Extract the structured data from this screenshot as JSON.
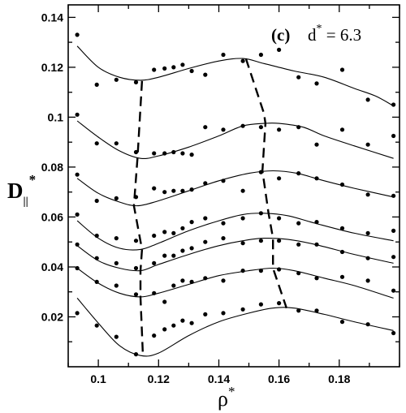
{
  "chart_data": {
    "type": "scatter",
    "title": "",
    "annotation": {
      "panel": "(c)",
      "label_base": "d",
      "label_sup": "*",
      "label_rest": " = 6.3"
    },
    "xlabel": {
      "base": "ρ",
      "sup": "*"
    },
    "ylabel": {
      "base": "D",
      "sub": "||",
      "sup": "*"
    },
    "xlim": [
      0.09,
      0.2
    ],
    "ylim": [
      0.0,
      0.145
    ],
    "xticks": [
      0.1,
      0.12,
      0.14,
      0.16,
      0.18
    ],
    "xtick_labels": [
      "0.1",
      "0.12",
      "0.14",
      "0.16",
      "0.18"
    ],
    "yticks": [
      0.02,
      0.04,
      0.06,
      0.08,
      0.1,
      0.12,
      0.14
    ],
    "ytick_labels": [
      "0.02",
      "0.04",
      "0.06",
      "0.08",
      "0.1",
      "0.12",
      "0.14"
    ],
    "xminor": 0.01,
    "yminor": 0.01,
    "grid": false,
    "legend": "none",
    "series": [
      {
        "points": [
          [
            0.093,
            0.133
          ],
          [
            0.0995,
            0.113
          ],
          [
            0.106,
            0.115
          ],
          [
            0.1125,
            0.114
          ],
          [
            0.1185,
            0.119
          ],
          [
            0.122,
            0.1195
          ],
          [
            0.125,
            0.12
          ],
          [
            0.128,
            0.121
          ],
          [
            0.131,
            0.1185
          ],
          [
            0.1355,
            0.117
          ],
          [
            0.1415,
            0.125
          ],
          [
            0.148,
            0.1225
          ],
          [
            0.154,
            0.125
          ],
          [
            0.16,
            0.127
          ],
          [
            0.1665,
            0.116
          ],
          [
            0.1725,
            0.1135
          ],
          [
            0.181,
            0.119
          ],
          [
            0.1895,
            0.107
          ],
          [
            0.198,
            0.105
          ]
        ],
        "curve": [
          [
            0.093,
            0.1285
          ],
          [
            0.1,
            0.12
          ],
          [
            0.107,
            0.116
          ],
          [
            0.114,
            0.1148
          ],
          [
            0.12,
            0.116
          ],
          [
            0.13,
            0.1195
          ],
          [
            0.14,
            0.1225
          ],
          [
            0.148,
            0.1235
          ],
          [
            0.155,
            0.1215
          ],
          [
            0.165,
            0.1185
          ],
          [
            0.175,
            0.116
          ],
          [
            0.185,
            0.1115
          ],
          [
            0.192,
            0.1085
          ],
          [
            0.198,
            0.1045
          ]
        ]
      },
      {
        "points": [
          [
            0.093,
            0.101
          ],
          [
            0.0995,
            0.0895
          ],
          [
            0.106,
            0.0895
          ],
          [
            0.1125,
            0.086
          ],
          [
            0.1185,
            0.0855
          ],
          [
            0.122,
            0.0855
          ],
          [
            0.125,
            0.086
          ],
          [
            0.128,
            0.0855
          ],
          [
            0.131,
            0.085
          ],
          [
            0.1355,
            0.096
          ],
          [
            0.1415,
            0.095
          ],
          [
            0.148,
            0.0965
          ],
          [
            0.154,
            0.096
          ],
          [
            0.16,
            0.095
          ],
          [
            0.1665,
            0.096
          ],
          [
            0.1725,
            0.089
          ],
          [
            0.181,
            0.095
          ],
          [
            0.1895,
            0.089
          ],
          [
            0.198,
            0.0925
          ]
        ],
        "curve": [
          [
            0.093,
            0.0985
          ],
          [
            0.1,
            0.092
          ],
          [
            0.107,
            0.0865
          ],
          [
            0.114,
            0.0835
          ],
          [
            0.12,
            0.0845
          ],
          [
            0.13,
            0.088
          ],
          [
            0.14,
            0.0925
          ],
          [
            0.148,
            0.0965
          ],
          [
            0.155,
            0.0975
          ],
          [
            0.16,
            0.0975
          ],
          [
            0.168,
            0.096
          ],
          [
            0.175,
            0.0925
          ],
          [
            0.185,
            0.0885
          ],
          [
            0.198,
            0.0835
          ]
        ]
      },
      {
        "points": [
          [
            0.093,
            0.077
          ],
          [
            0.0995,
            0.0665
          ],
          [
            0.106,
            0.0675
          ],
          [
            0.1125,
            0.068
          ],
          [
            0.1185,
            0.0715
          ],
          [
            0.122,
            0.07
          ],
          [
            0.125,
            0.0705
          ],
          [
            0.128,
            0.0705
          ],
          [
            0.131,
            0.071
          ],
          [
            0.1355,
            0.0735
          ],
          [
            0.1415,
            0.0745
          ],
          [
            0.148,
            0.0705
          ],
          [
            0.154,
            0.078
          ],
          [
            0.16,
            0.0755
          ],
          [
            0.1665,
            0.0775
          ],
          [
            0.1725,
            0.0755
          ],
          [
            0.181,
            0.073
          ],
          [
            0.1895,
            0.069
          ],
          [
            0.198,
            0.0685
          ]
        ],
        "curve": [
          [
            0.093,
            0.0755
          ],
          [
            0.1,
            0.0695
          ],
          [
            0.107,
            0.066
          ],
          [
            0.113,
            0.0645
          ],
          [
            0.12,
            0.0665
          ],
          [
            0.13,
            0.0705
          ],
          [
            0.14,
            0.0745
          ],
          [
            0.15,
            0.0775
          ],
          [
            0.158,
            0.0785
          ],
          [
            0.166,
            0.0775
          ],
          [
            0.175,
            0.0745
          ],
          [
            0.185,
            0.0715
          ],
          [
            0.198,
            0.068
          ]
        ]
      },
      {
        "points": [
          [
            0.093,
            0.061
          ],
          [
            0.0995,
            0.0525
          ],
          [
            0.106,
            0.0515
          ],
          [
            0.1125,
            0.0505
          ],
          [
            0.1185,
            0.0525
          ],
          [
            0.122,
            0.054
          ],
          [
            0.125,
            0.0535
          ],
          [
            0.128,
            0.0555
          ],
          [
            0.131,
            0.058
          ],
          [
            0.1355,
            0.0595
          ],
          [
            0.1415,
            0.0575
          ],
          [
            0.148,
            0.0595
          ],
          [
            0.154,
            0.0615
          ],
          [
            0.16,
            0.0595
          ],
          [
            0.1665,
            0.0575
          ],
          [
            0.1725,
            0.058
          ],
          [
            0.181,
            0.0555
          ],
          [
            0.1895,
            0.0535
          ],
          [
            0.198,
            0.0545
          ]
        ],
        "curve": [
          [
            0.093,
            0.0585
          ],
          [
            0.1,
            0.0515
          ],
          [
            0.107,
            0.0475
          ],
          [
            0.114,
            0.047
          ],
          [
            0.12,
            0.0495
          ],
          [
            0.13,
            0.0545
          ],
          [
            0.14,
            0.0585
          ],
          [
            0.148,
            0.061
          ],
          [
            0.155,
            0.0615
          ],
          [
            0.163,
            0.0605
          ],
          [
            0.172,
            0.0575
          ],
          [
            0.185,
            0.0535
          ],
          [
            0.198,
            0.0505
          ]
        ]
      },
      {
        "points": [
          [
            0.093,
            0.049
          ],
          [
            0.0995,
            0.0435
          ],
          [
            0.106,
            0.0415
          ],
          [
            0.1125,
            0.0395
          ],
          [
            0.1185,
            0.0415
          ],
          [
            0.122,
            0.0445
          ],
          [
            0.125,
            0.0445
          ],
          [
            0.128,
            0.0465
          ],
          [
            0.131,
            0.0475
          ],
          [
            0.1355,
            0.05
          ],
          [
            0.1415,
            0.0515
          ],
          [
            0.148,
            0.0495
          ],
          [
            0.154,
            0.0505
          ],
          [
            0.16,
            0.0505
          ],
          [
            0.1665,
            0.049
          ],
          [
            0.1725,
            0.049
          ],
          [
            0.181,
            0.046
          ],
          [
            0.1895,
            0.0435
          ],
          [
            0.198,
            0.044
          ]
        ],
        "curve": [
          [
            0.093,
            0.0485
          ],
          [
            0.1,
            0.0425
          ],
          [
            0.107,
            0.0395
          ],
          [
            0.114,
            0.0385
          ],
          [
            0.12,
            0.041
          ],
          [
            0.13,
            0.045
          ],
          [
            0.14,
            0.0485
          ],
          [
            0.148,
            0.0505
          ],
          [
            0.155,
            0.0515
          ],
          [
            0.163,
            0.051
          ],
          [
            0.172,
            0.049
          ],
          [
            0.185,
            0.045
          ],
          [
            0.198,
            0.0415
          ]
        ]
      },
      {
        "points": [
          [
            0.093,
            0.0395
          ],
          [
            0.0995,
            0.034
          ],
          [
            0.106,
            0.0325
          ],
          [
            0.1125,
            0.029
          ],
          [
            0.1185,
            0.0295
          ],
          [
            0.122,
            0.026
          ],
          [
            0.125,
            0.0325
          ],
          [
            0.128,
            0.0345
          ],
          [
            0.131,
            0.034
          ],
          [
            0.1355,
            0.0355
          ],
          [
            0.1415,
            0.0345
          ],
          [
            0.148,
            0.0385
          ],
          [
            0.154,
            0.0385
          ],
          [
            0.16,
            0.039
          ],
          [
            0.1665,
            0.0375
          ],
          [
            0.1725,
            0.0355
          ],
          [
            0.181,
            0.036
          ],
          [
            0.1895,
            0.0345
          ],
          [
            0.198,
            0.0305
          ]
        ],
        "curve": [
          [
            0.093,
            0.0395
          ],
          [
            0.1,
            0.0335
          ],
          [
            0.107,
            0.0295
          ],
          [
            0.114,
            0.028
          ],
          [
            0.12,
            0.0295
          ],
          [
            0.13,
            0.033
          ],
          [
            0.14,
            0.0365
          ],
          [
            0.15,
            0.0385
          ],
          [
            0.158,
            0.0395
          ],
          [
            0.165,
            0.0385
          ],
          [
            0.175,
            0.0355
          ],
          [
            0.185,
            0.0325
          ],
          [
            0.198,
            0.0275
          ]
        ]
      },
      {
        "points": [
          [
            0.093,
            0.0215
          ],
          [
            0.0995,
            0.0165
          ],
          [
            0.106,
            0.012
          ],
          [
            0.1125,
            0.005
          ],
          [
            0.1185,
            0.0125
          ],
          [
            0.122,
            0.015
          ],
          [
            0.125,
            0.0165
          ],
          [
            0.128,
            0.0185
          ],
          [
            0.131,
            0.0175
          ],
          [
            0.1355,
            0.021
          ],
          [
            0.1415,
            0.0215
          ],
          [
            0.148,
            0.023
          ],
          [
            0.154,
            0.025
          ],
          [
            0.16,
            0.0255
          ],
          [
            0.1665,
            0.0225
          ],
          [
            0.1725,
            0.0225
          ],
          [
            0.181,
            0.018
          ],
          [
            0.1895,
            0.017
          ],
          [
            0.198,
            0.0135
          ]
        ],
        "curve": [
          [
            0.093,
            0.0275
          ],
          [
            0.1,
            0.0175
          ],
          [
            0.107,
            0.0085
          ],
          [
            0.114,
            0.0045
          ],
          [
            0.12,
            0.0055
          ],
          [
            0.13,
            0.0125
          ],
          [
            0.14,
            0.018
          ],
          [
            0.15,
            0.0215
          ],
          [
            0.158,
            0.0235
          ],
          [
            0.165,
            0.0235
          ],
          [
            0.175,
            0.021
          ],
          [
            0.185,
            0.018
          ],
          [
            0.198,
            0.0145
          ]
        ]
      }
    ],
    "dashed_lines": [
      [
        [
          0.1145,
          0.1145
        ],
        [
          0.113,
          0.0835
        ],
        [
          0.1118,
          0.0645
        ],
        [
          0.1145,
          0.047
        ],
        [
          0.114,
          0.0385
        ],
        [
          0.114,
          0.028
        ],
        [
          0.1148,
          0.0045
        ]
      ],
      [
        [
          0.149,
          0.1235
        ],
        [
          0.155,
          0.1015
        ],
        [
          0.1555,
          0.0975
        ],
        [
          0.1545,
          0.0785
        ],
        [
          0.1565,
          0.0615
        ],
        [
          0.158,
          0.0515
        ],
        [
          0.158,
          0.0395
        ],
        [
          0.1625,
          0.0235
        ]
      ]
    ]
  }
}
